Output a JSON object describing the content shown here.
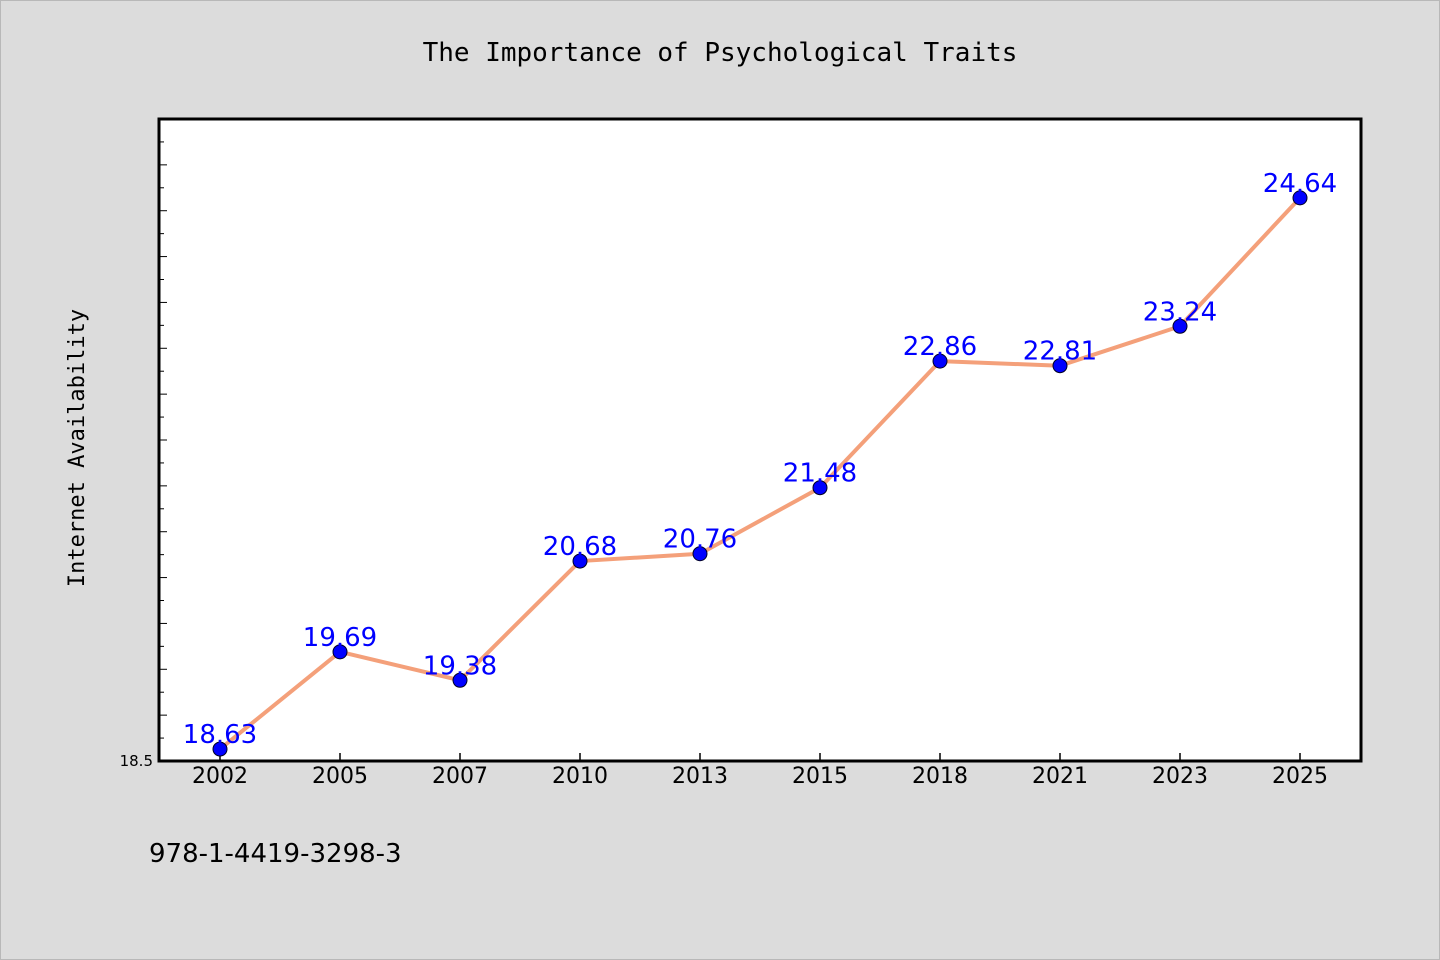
{
  "chart_data": {
    "type": "line",
    "title": "The Importance of Psychological Traits",
    "xlabel": "",
    "ylabel": "Internet Availability",
    "categories": [
      "2002",
      "2005",
      "2007",
      "2010",
      "2013",
      "2015",
      "2018",
      "2021",
      "2023",
      "2025"
    ],
    "series": [
      {
        "values": [
          18.63,
          19.69,
          19.38,
          20.68,
          20.76,
          21.48,
          22.86,
          22.81,
          23.24,
          24.64
        ],
        "data_labels": [
          "18.63",
          "19.69",
          "19.38",
          "20.68",
          "20.76",
          "21.48",
          "22.86",
          "22.81",
          "23.24",
          "24.64"
        ]
      }
    ],
    "ylim": [
      18.5,
      25.5
    ],
    "ytick_labels": [
      "18.5"
    ],
    "line_color": "#f4a07a",
    "marker_color": "#0000ff",
    "label_color": "#0000ff",
    "grid": false,
    "legend": "none"
  },
  "footer": {
    "isbn": "978-1-4419-3298-3"
  }
}
